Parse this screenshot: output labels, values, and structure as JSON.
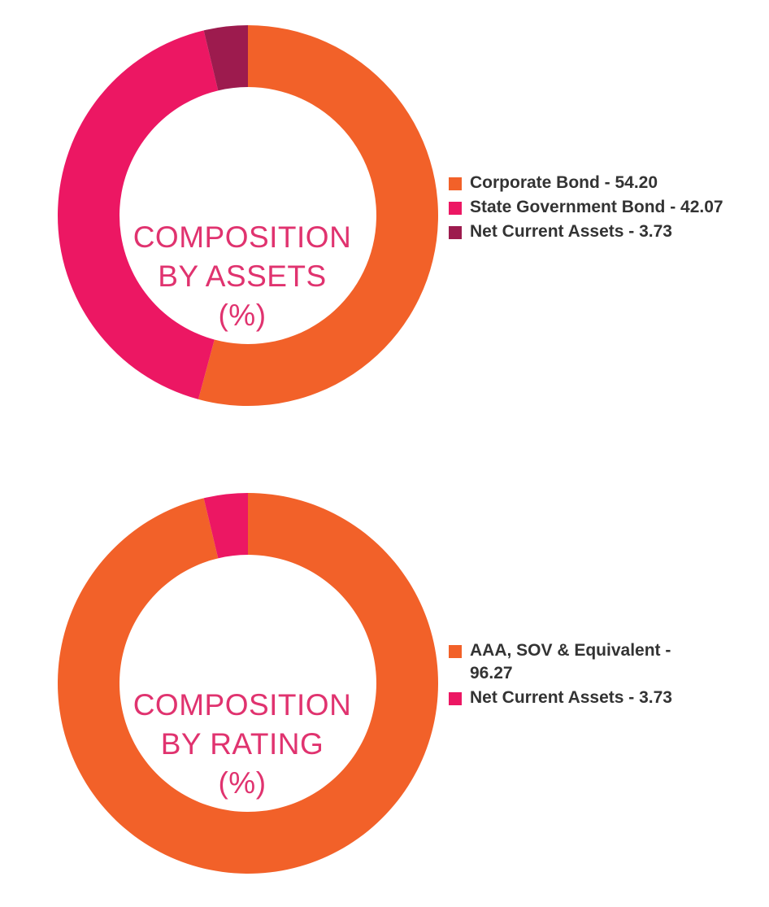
{
  "chart_data": [
    {
      "type": "pie",
      "donut": true,
      "title_lines": [
        "COMPOSITION",
        "BY ASSETS",
        "(%)"
      ],
      "categories": [
        "Corporate Bond",
        "State Government Bond",
        "Net Current Assets"
      ],
      "values": [
        54.2,
        42.07,
        3.73
      ],
      "colors": [
        "#f26129",
        "#ec1763",
        "#9d1b4e"
      ],
      "legend_labels": [
        "Corporate Bond - 54.20",
        "State Government Bond - 42.07",
        "Net Current Assets - 3.73"
      ],
      "legend_position": "right"
    },
    {
      "type": "pie",
      "donut": true,
      "title_lines": [
        "COMPOSITION",
        "BY RATING",
        "(%)"
      ],
      "categories": [
        "AAA, SOV & Equivalent",
        "Net Current Assets"
      ],
      "values": [
        96.27,
        3.73
      ],
      "colors": [
        "#f26129",
        "#ec1763"
      ],
      "legend_labels": [
        "AAA, SOV & Equivalent - 96.27",
        "Net Current Assets - 3.73"
      ],
      "legend_position": "right"
    }
  ]
}
